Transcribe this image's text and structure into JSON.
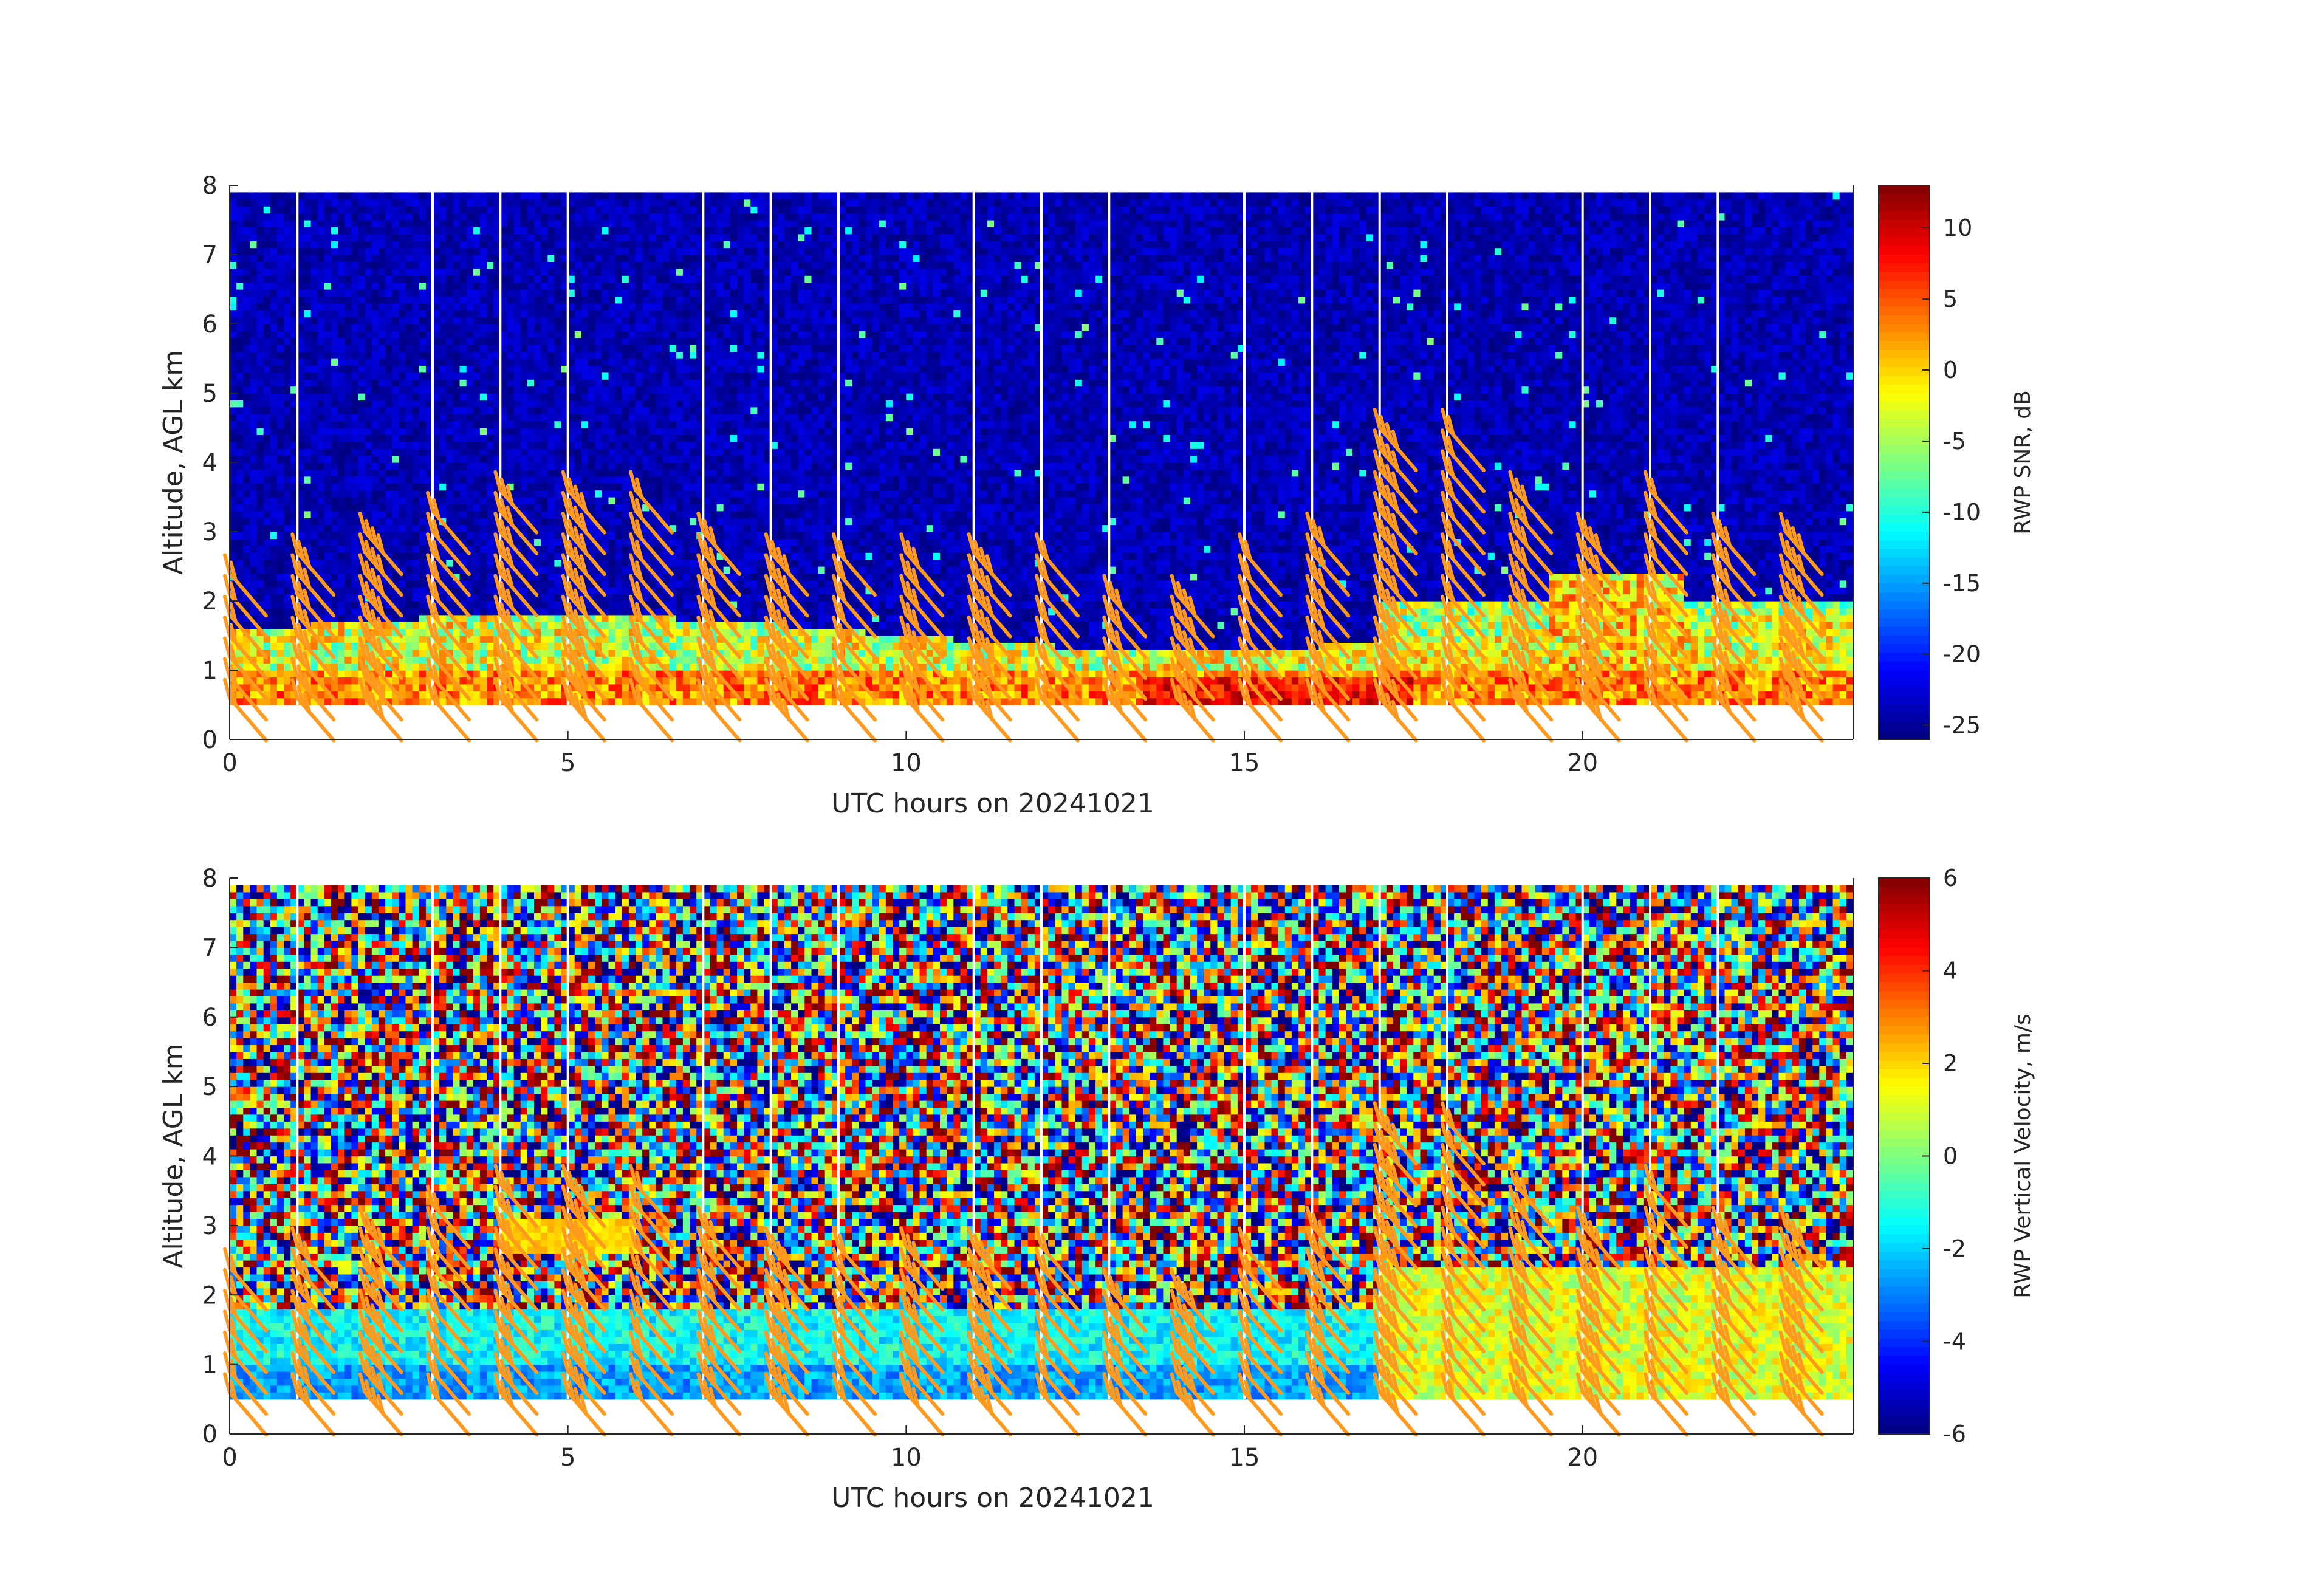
{
  "chart_data": [
    {
      "type": "heatmap",
      "panel": "top",
      "xlabel": "UTC hours on 20241021",
      "ylabel": "Altitude, AGL km",
      "xlim": [
        0,
        24
      ],
      "ylim": [
        0,
        8
      ],
      "x_ticks": [
        "0",
        "5",
        "10",
        "15",
        "20"
      ],
      "y_ticks": [
        "0",
        "1",
        "2",
        "3",
        "4",
        "5",
        "6",
        "7",
        "8"
      ],
      "colorbar": {
        "label": "RWP SNR, dB",
        "range": [
          -26,
          13
        ],
        "ticks": [
          "10",
          "5",
          "0",
          "-5",
          "-10",
          "-15",
          "-20",
          "-25"
        ],
        "tick_values": [
          10,
          5,
          0,
          -5,
          -10,
          -15,
          -20,
          -25
        ],
        "colormap": "jet"
      },
      "data_altitude_range_km": [
        0.5,
        7.9
      ],
      "background_value_dB": -24,
      "features": [
        {
          "description": "strong boundary layer echo",
          "x_range": [
            0,
            24
          ],
          "y_range": [
            0.5,
            1.7
          ],
          "value_dB": 0
        },
        {
          "description": "very strong echo near surface",
          "x_range": [
            13.5,
            17.5
          ],
          "y_range": [
            0.5,
            0.9
          ],
          "value_dB": 10
        },
        {
          "description": "elevated echo",
          "x_range": [
            19.5,
            21.5
          ],
          "y_range": [
            1.0,
            2.4
          ],
          "value_dB": 2
        }
      ],
      "gap_times_utc": [
        1,
        3,
        4,
        5,
        7,
        8,
        9,
        11,
        12,
        13,
        15,
        16,
        17,
        18,
        20,
        21,
        22
      ],
      "wind_barb_times_utc": [
        0,
        1,
        2,
        3,
        4,
        5,
        6,
        7,
        8,
        9,
        10,
        11,
        12,
        13,
        14,
        15,
        16,
        17,
        18,
        19,
        20,
        21,
        22,
        23
      ],
      "wind_barb_top_km": [
        2.6,
        2.8,
        3.0,
        3.4,
        3.7,
        3.7,
        3.6,
        3.2,
        2.8,
        2.7,
        2.7,
        2.7,
        2.7,
        2.3,
        2.3,
        2.8,
        3.2,
        4.6,
        4.6,
        3.8,
        3.2,
        3.7,
        3.2,
        3.2
      ],
      "wind_barb_color": "#ff9a1f"
    },
    {
      "type": "heatmap",
      "panel": "bottom",
      "xlabel": "UTC hours on 20241021",
      "ylabel": "Altitude, AGL km",
      "xlim": [
        0,
        24
      ],
      "ylim": [
        0,
        8
      ],
      "x_ticks": [
        "0",
        "5",
        "10",
        "15",
        "20"
      ],
      "y_ticks": [
        "0",
        "1",
        "2",
        "3",
        "4",
        "5",
        "6",
        "7",
        "8"
      ],
      "colorbar": {
        "label": "RWP Vertical Velocity, m/s",
        "range": [
          -6,
          6
        ],
        "ticks": [
          "6",
          "4",
          "2",
          "0",
          "-2",
          "-4",
          "-6"
        ],
        "tick_values": [
          6,
          4,
          2,
          0,
          -2,
          -4,
          -6
        ],
        "colormap": "jet"
      },
      "data_altitude_range_km": [
        0.5,
        7.9
      ],
      "features": [
        {
          "description": "noisy random velocities aloft",
          "x_range": [
            0,
            24
          ],
          "y_range": [
            1.8,
            7.9
          ],
          "value_range_ms": [
            -6,
            6
          ]
        },
        {
          "description": "slight downward motion near surface",
          "x_range": [
            0,
            17
          ],
          "y_range": [
            0.5,
            1.8
          ],
          "value_ms": -1.5
        },
        {
          "description": "weak upward motion",
          "x_range": [
            17,
            24
          ],
          "y_range": [
            0.5,
            2.4
          ],
          "value_ms": 1
        }
      ],
      "gap_times_utc": [
        1,
        3,
        4,
        5,
        7,
        8,
        9,
        11,
        12,
        13,
        15,
        16,
        17,
        18,
        20,
        21,
        22
      ],
      "wind_barb_times_utc": [
        0,
        1,
        2,
        3,
        4,
        5,
        6,
        7,
        8,
        9,
        10,
        11,
        12,
        13,
        14,
        15,
        16,
        17,
        18,
        19,
        20,
        21,
        22,
        23
      ],
      "wind_barb_top_km": [
        2.6,
        2.8,
        3.0,
        3.4,
        3.7,
        3.7,
        3.6,
        3.2,
        2.8,
        2.7,
        2.7,
        2.7,
        2.7,
        2.3,
        2.3,
        2.8,
        3.2,
        4.6,
        4.6,
        3.8,
        3.2,
        3.7,
        3.2,
        3.2
      ],
      "wind_barb_color": "#ff9a1f"
    }
  ]
}
